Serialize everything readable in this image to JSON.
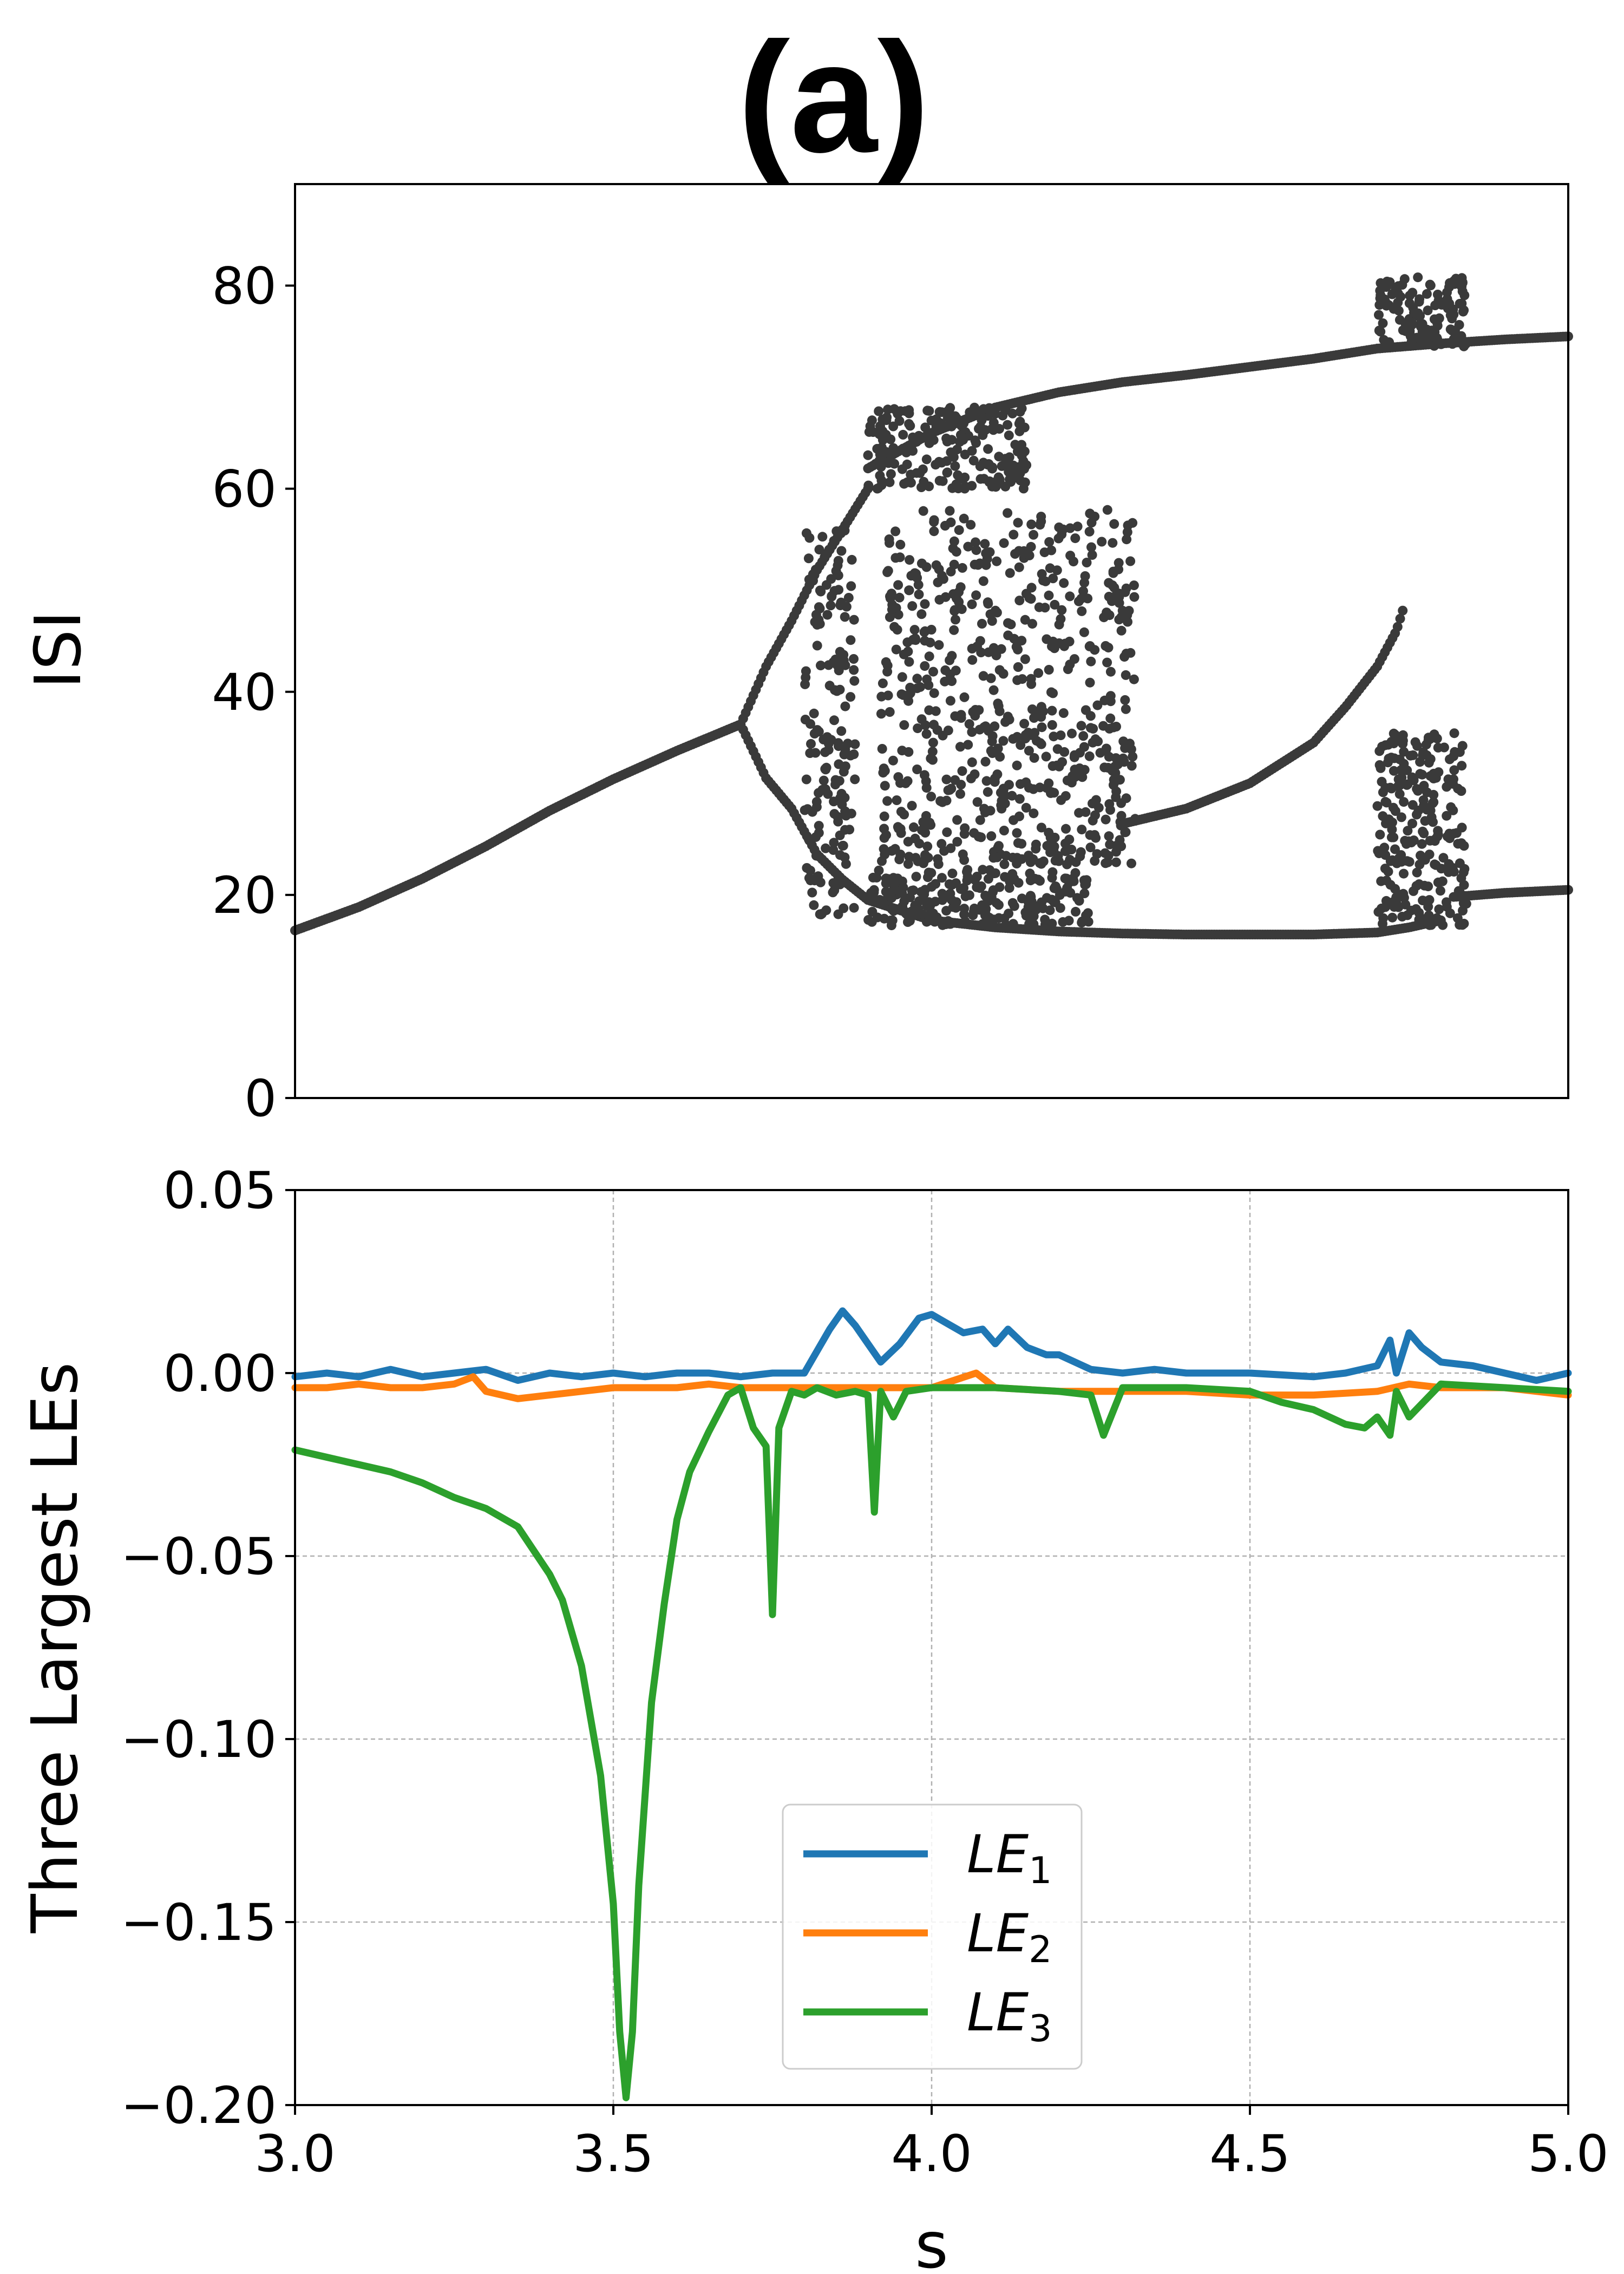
{
  "figure": {
    "panel_label": "(a)"
  },
  "chart_data": [
    {
      "type": "scatter",
      "name": "bifurcation-diagram",
      "title": "(a)",
      "xlabel": "",
      "ylabel": "ISI",
      "xlim": [
        3.0,
        5.0
      ],
      "ylim": [
        0,
        90
      ],
      "yticks": [
        0,
        20,
        40,
        60,
        80
      ],
      "ytick_labels": [
        "0",
        "20",
        "40",
        "60",
        "80"
      ],
      "grid": false,
      "marker_color": "#3a3a3a",
      "branches": [
        {
          "name": "period-1",
          "x": [
            3.0,
            3.1,
            3.2,
            3.3,
            3.4,
            3.5,
            3.6,
            3.7
          ],
          "y": [
            16.5,
            18.8,
            21.6,
            24.8,
            28.3,
            31.4,
            34.2,
            36.8
          ]
        },
        {
          "name": "period-2-upper",
          "x": [
            3.7,
            3.74,
            3.78,
            3.82,
            3.86,
            3.9
          ],
          "y": [
            36.8,
            42.5,
            47,
            52,
            56,
            60
          ]
        },
        {
          "name": "period-2-lower",
          "x": [
            3.7,
            3.74,
            3.78,
            3.82,
            3.86
          ],
          "y": [
            36.8,
            31.5,
            28.5,
            24,
            21.5
          ]
        },
        {
          "name": "upper-main",
          "x": [
            3.9,
            4.0,
            4.1,
            4.2,
            4.3,
            4.4,
            4.5,
            4.6,
            4.7,
            4.8,
            4.9,
            5.0
          ],
          "y": [
            62,
            65.5,
            68,
            69.5,
            70.5,
            71.2,
            72,
            72.8,
            73.8,
            74.3,
            74.7,
            75
          ]
        },
        {
          "name": "lower-main",
          "x": [
            3.86,
            3.9,
            4.0,
            4.1,
            4.2,
            4.3,
            4.4,
            4.5,
            4.6,
            4.7,
            4.75,
            4.8
          ],
          "y": [
            21.5,
            19.5,
            17.5,
            16.8,
            16.4,
            16.2,
            16.1,
            16.1,
            16.1,
            16.3,
            16.8,
            17.5
          ]
        },
        {
          "name": "lower-main-right",
          "x": [
            4.82,
            4.9,
            5.0
          ],
          "y": [
            19.8,
            20.2,
            20.5
          ]
        },
        {
          "name": "middle-branch",
          "x": [
            4.3,
            4.4,
            4.5,
            4.6,
            4.65,
            4.7,
            4.73,
            4.74
          ],
          "y": [
            27,
            28.5,
            31,
            35,
            38.5,
            42.5,
            46,
            48
          ]
        }
      ],
      "chaotic_regions": [
        {
          "name": "first-chaos",
          "x_range": [
            3.8,
            3.88
          ],
          "y_range": [
            18,
            56
          ],
          "points": 170
        },
        {
          "name": "central-band",
          "x_range": [
            3.92,
            4.32
          ],
          "y_range": [
            23,
            58
          ],
          "points": 650
        },
        {
          "name": "lower-band",
          "x_range": [
            3.9,
            4.25
          ],
          "y_range": [
            17,
            22.5
          ],
          "points": 220
        },
        {
          "name": "upper-band",
          "x_range": [
            3.9,
            4.15
          ],
          "y_range": [
            60,
            68
          ],
          "points": 200
        },
        {
          "name": "right-upper-burst",
          "x_range": [
            4.7,
            4.84
          ],
          "y_range": [
            74,
            81
          ],
          "points": 120
        },
        {
          "name": "right-lower-burst",
          "x_range": [
            4.7,
            4.84
          ],
          "y_range": [
            17,
            36
          ],
          "points": 240
        }
      ]
    },
    {
      "type": "line",
      "name": "lyapunov-exponents",
      "xlabel": "s",
      "ylabel": "Three Largest LEs",
      "xlim": [
        3.0,
        5.0
      ],
      "ylim": [
        -0.2,
        0.05
      ],
      "xticks": [
        3.0,
        3.5,
        4.0,
        4.5,
        5.0
      ],
      "xtick_labels": [
        "3.0",
        "3.5",
        "4.0",
        "4.5",
        "5.0"
      ],
      "yticks": [
        -0.2,
        -0.15,
        -0.1,
        -0.05,
        0.0,
        0.05
      ],
      "ytick_labels": [
        "−0.20",
        "−0.15",
        "−0.10",
        "−0.05",
        "0.00",
        "0.05"
      ],
      "grid": true,
      "legend_position": "lower-center",
      "series": [
        {
          "name": "LE",
          "subscript": "1",
          "color": "#1f77b4",
          "x": [
            3.0,
            3.05,
            3.1,
            3.15,
            3.2,
            3.25,
            3.3,
            3.35,
            3.4,
            3.45,
            3.5,
            3.55,
            3.6,
            3.65,
            3.7,
            3.75,
            3.8,
            3.82,
            3.84,
            3.86,
            3.88,
            3.9,
            3.92,
            3.95,
            3.98,
            4.0,
            4.02,
            4.05,
            4.08,
            4.1,
            4.12,
            4.15,
            4.18,
            4.2,
            4.25,
            4.3,
            4.35,
            4.4,
            4.5,
            4.6,
            4.65,
            4.7,
            4.72,
            4.73,
            4.75,
            4.77,
            4.8,
            4.85,
            4.9,
            4.95,
            5.0
          ],
          "y": [
            -0.001,
            0.0,
            -0.001,
            0.001,
            -0.001,
            0.0,
            0.001,
            -0.002,
            0.0,
            -0.001,
            0.0,
            -0.001,
            0.0,
            0.0,
            -0.001,
            0.0,
            0.0,
            0.006,
            0.012,
            0.017,
            0.013,
            0.008,
            0.003,
            0.008,
            0.015,
            0.016,
            0.014,
            0.011,
            0.012,
            0.008,
            0.012,
            0.007,
            0.005,
            0.005,
            0.001,
            0.0,
            0.001,
            0.0,
            0.0,
            -0.001,
            0.0,
            0.002,
            0.009,
            0.0,
            0.011,
            0.007,
            0.003,
            0.002,
            0.0,
            -0.002,
            0.0
          ]
        },
        {
          "name": "LE",
          "subscript": "2",
          "color": "#ff7f0e",
          "x": [
            3.0,
            3.05,
            3.1,
            3.15,
            3.2,
            3.25,
            3.28,
            3.3,
            3.35,
            3.4,
            3.45,
            3.5,
            3.55,
            3.6,
            3.65,
            3.7,
            3.8,
            3.9,
            4.0,
            4.07,
            4.1,
            4.2,
            4.3,
            4.4,
            4.5,
            4.6,
            4.7,
            4.75,
            4.8,
            4.85,
            4.9,
            4.95,
            5.0
          ],
          "y": [
            -0.004,
            -0.004,
            -0.003,
            -0.004,
            -0.004,
            -0.003,
            -0.001,
            -0.005,
            -0.007,
            -0.006,
            -0.005,
            -0.004,
            -0.004,
            -0.004,
            -0.003,
            -0.004,
            -0.004,
            -0.004,
            -0.004,
            0.0,
            -0.004,
            -0.005,
            -0.005,
            -0.005,
            -0.006,
            -0.006,
            -0.005,
            -0.003,
            -0.004,
            -0.004,
            -0.004,
            -0.005,
            -0.006
          ]
        },
        {
          "name": "LE",
          "subscript": "3",
          "color": "#2ca02c",
          "x": [
            3.0,
            3.05,
            3.1,
            3.15,
            3.2,
            3.25,
            3.3,
            3.35,
            3.4,
            3.42,
            3.45,
            3.48,
            3.5,
            3.51,
            3.52,
            3.53,
            3.54,
            3.56,
            3.58,
            3.6,
            3.62,
            3.65,
            3.68,
            3.7,
            3.72,
            3.74,
            3.75,
            3.76,
            3.78,
            3.8,
            3.82,
            3.85,
            3.88,
            3.9,
            3.91,
            3.92,
            3.94,
            3.96,
            4.0,
            4.1,
            4.2,
            4.25,
            4.27,
            4.3,
            4.4,
            4.5,
            4.55,
            4.6,
            4.65,
            4.68,
            4.7,
            4.72,
            4.73,
            4.75,
            4.8,
            4.9,
            5.0
          ],
          "y": [
            -0.021,
            -0.023,
            -0.025,
            -0.027,
            -0.03,
            -0.034,
            -0.037,
            -0.042,
            -0.055,
            -0.062,
            -0.08,
            -0.11,
            -0.145,
            -0.18,
            -0.198,
            -0.18,
            -0.14,
            -0.09,
            -0.063,
            -0.04,
            -0.027,
            -0.016,
            -0.006,
            -0.004,
            -0.015,
            -0.02,
            -0.066,
            -0.015,
            -0.005,
            -0.006,
            -0.004,
            -0.006,
            -0.005,
            -0.006,
            -0.038,
            -0.005,
            -0.012,
            -0.005,
            -0.004,
            -0.004,
            -0.005,
            -0.006,
            -0.017,
            -0.004,
            -0.004,
            -0.005,
            -0.008,
            -0.01,
            -0.014,
            -0.015,
            -0.012,
            -0.017,
            -0.005,
            -0.012,
            -0.003,
            -0.004,
            -0.005
          ]
        }
      ]
    }
  ]
}
